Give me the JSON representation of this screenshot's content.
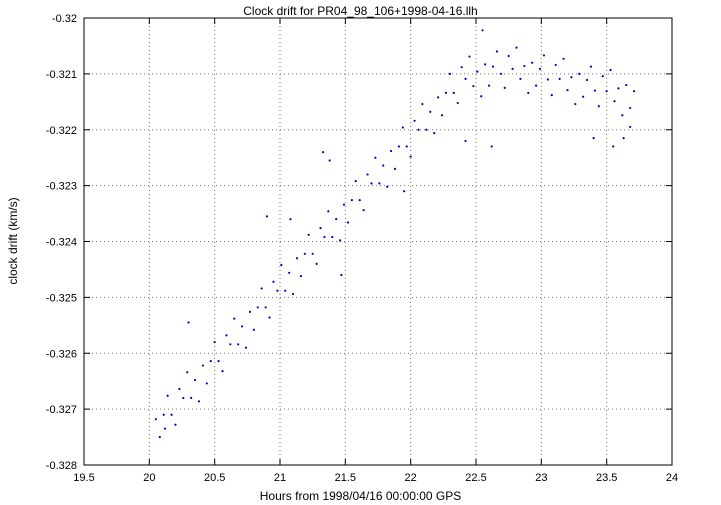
{
  "chart_data": {
    "type": "scatter",
    "title": "Clock drift for PR04_98_106+1998-04-16.llh",
    "xlabel": "Hours from 1998/04/16 00:00:00 GPS",
    "ylabel": "clock drift (km/s)",
    "xlim": [
      19.5,
      24
    ],
    "ylim": [
      -0.328,
      -0.32
    ],
    "grid": true,
    "legend": "none",
    "point_color": "#0000cc",
    "marker": "dot",
    "xticks": {
      "values": [
        19.5,
        20,
        20.5,
        21,
        21.5,
        22,
        22.5,
        23,
        23.5,
        24
      ],
      "labels": [
        "19.5",
        "20",
        "20.5",
        "21",
        "21.5",
        "22",
        "22.5",
        "23",
        "23.5",
        "24"
      ]
    },
    "yticks": {
      "values": [
        -0.32,
        -0.321,
        -0.322,
        -0.323,
        -0.324,
        -0.325,
        -0.326,
        -0.327,
        -0.328
      ],
      "labels": [
        "-0.32",
        "-0.321",
        "-0.322",
        "-0.323",
        "-0.324",
        "-0.325",
        "-0.326",
        "-0.327",
        "-0.328"
      ]
    },
    "points": [
      [
        20.05,
        -0.32718
      ],
      [
        20.08,
        -0.3275
      ],
      [
        20.11,
        -0.3271
      ],
      [
        20.14,
        -0.32676
      ],
      [
        20.17,
        -0.3271
      ],
      [
        20.2,
        -0.32728
      ],
      [
        20.23,
        -0.32664
      ],
      [
        20.26,
        -0.3268
      ],
      [
        20.29,
        -0.32634
      ],
      [
        20.32,
        -0.3268
      ],
      [
        20.35,
        -0.32648
      ],
      [
        20.38,
        -0.32686
      ],
      [
        20.41,
        -0.32622
      ],
      [
        20.44,
        -0.32654
      ],
      [
        20.47,
        -0.32614
      ],
      [
        20.5,
        -0.3258
      ],
      [
        20.53,
        -0.32614
      ],
      [
        20.56,
        -0.32632
      ],
      [
        20.59,
        -0.32568
      ],
      [
        20.62,
        -0.32584
      ],
      [
        20.65,
        -0.32538
      ],
      [
        20.68,
        -0.32584
      ],
      [
        20.71,
        -0.32552
      ],
      [
        20.74,
        -0.3259
      ],
      [
        20.77,
        -0.32526
      ],
      [
        20.8,
        -0.32558
      ],
      [
        20.83,
        -0.32518
      ],
      [
        20.86,
        -0.32484
      ],
      [
        20.89,
        -0.32518
      ],
      [
        20.92,
        -0.32536
      ],
      [
        20.95,
        -0.32472
      ],
      [
        20.98,
        -0.32488
      ],
      [
        21.01,
        -0.32442
      ],
      [
        21.04,
        -0.32488
      ],
      [
        21.07,
        -0.32456
      ],
      [
        21.1,
        -0.32494
      ],
      [
        21.13,
        -0.3243
      ],
      [
        21.16,
        -0.32462
      ],
      [
        21.19,
        -0.32422
      ],
      [
        21.22,
        -0.32388
      ],
      [
        21.25,
        -0.32422
      ],
      [
        21.28,
        -0.3244
      ],
      [
        21.31,
        -0.32376
      ],
      [
        21.34,
        -0.32392
      ],
      [
        21.37,
        -0.32346
      ],
      [
        21.4,
        -0.32392
      ],
      [
        21.43,
        -0.3236
      ],
      [
        21.46,
        -0.32398
      ],
      [
        21.49,
        -0.32334
      ],
      [
        21.52,
        -0.32366
      ],
      [
        21.55,
        -0.32326
      ],
      [
        21.58,
        -0.32292
      ],
      [
        21.61,
        -0.32326
      ],
      [
        21.64,
        -0.32344
      ],
      [
        21.67,
        -0.3228
      ],
      [
        21.7,
        -0.32296
      ],
      [
        21.73,
        -0.3225
      ],
      [
        21.76,
        -0.32296
      ],
      [
        21.79,
        -0.32264
      ],
      [
        21.82,
        -0.32302
      ],
      [
        21.85,
        -0.32238
      ],
      [
        21.88,
        -0.3227
      ],
      [
        21.91,
        -0.3223
      ],
      [
        21.94,
        -0.32196
      ],
      [
        21.97,
        -0.3223
      ],
      [
        22.0,
        -0.32248
      ],
      [
        22.03,
        -0.32184
      ],
      [
        22.06,
        -0.322
      ],
      [
        22.09,
        -0.32154
      ],
      [
        22.12,
        -0.322
      ],
      [
        22.15,
        -0.32168
      ],
      [
        22.18,
        -0.32206
      ],
      [
        22.21,
        -0.32142
      ],
      [
        22.24,
        -0.32174
      ],
      [
        22.27,
        -0.32134
      ],
      [
        22.3,
        -0.321
      ],
      [
        22.33,
        -0.32134
      ],
      [
        22.36,
        -0.32152
      ],
      [
        22.39,
        -0.32088
      ],
      [
        22.42,
        -0.32109
      ],
      [
        22.45,
        -0.32069
      ],
      [
        22.48,
        -0.32122
      ],
      [
        22.51,
        -0.32096
      ],
      [
        22.54,
        -0.3214
      ],
      [
        22.57,
        -0.32083
      ],
      [
        22.6,
        -0.32121
      ],
      [
        22.63,
        -0.32087
      ],
      [
        22.66,
        -0.3206
      ],
      [
        22.69,
        -0.321
      ],
      [
        22.72,
        -0.32125
      ],
      [
        22.75,
        -0.32068
      ],
      [
        22.78,
        -0.32091
      ],
      [
        22.81,
        -0.32053
      ],
      [
        22.84,
        -0.32109
      ],
      [
        22.87,
        -0.32086
      ],
      [
        22.9,
        -0.32134
      ],
      [
        22.93,
        -0.3208
      ],
      [
        22.96,
        -0.32121
      ],
      [
        22.99,
        -0.32091
      ],
      [
        23.02,
        -0.32067
      ],
      [
        23.05,
        -0.3211
      ],
      [
        23.08,
        -0.32138
      ],
      [
        23.11,
        -0.32084
      ],
      [
        23.14,
        -0.32109
      ],
      [
        23.17,
        -0.32073
      ],
      [
        23.2,
        -0.32129
      ],
      [
        23.23,
        -0.32106
      ],
      [
        23.26,
        -0.32154
      ],
      [
        23.29,
        -0.321
      ],
      [
        23.32,
        -0.32141
      ],
      [
        23.35,
        -0.32111
      ],
      [
        23.38,
        -0.32087
      ],
      [
        23.41,
        -0.3213
      ],
      [
        23.44,
        -0.32158
      ],
      [
        23.47,
        -0.32104
      ],
      [
        23.5,
        -0.32131
      ],
      [
        23.53,
        -0.32093
      ],
      [
        23.56,
        -0.32149
      ],
      [
        23.59,
        -0.32126
      ],
      [
        23.62,
        -0.32174
      ],
      [
        23.65,
        -0.3212
      ],
      [
        23.68,
        -0.32161
      ],
      [
        23.71,
        -0.32131
      ],
      [
        20.12,
        -0.32735
      ],
      [
        20.3,
        -0.32545
      ],
      [
        20.9,
        -0.32355
      ],
      [
        21.08,
        -0.3236
      ],
      [
        21.33,
        -0.3224
      ],
      [
        21.38,
        -0.32255
      ],
      [
        21.47,
        -0.3246
      ],
      [
        21.95,
        -0.3231
      ],
      [
        22.42,
        -0.3222
      ],
      [
        22.55,
        -0.32022
      ],
      [
        22.62,
        -0.3223
      ],
      [
        23.4,
        -0.32215
      ],
      [
        23.55,
        -0.3223
      ],
      [
        23.63,
        -0.32215
      ],
      [
        23.68,
        -0.32195
      ]
    ]
  }
}
